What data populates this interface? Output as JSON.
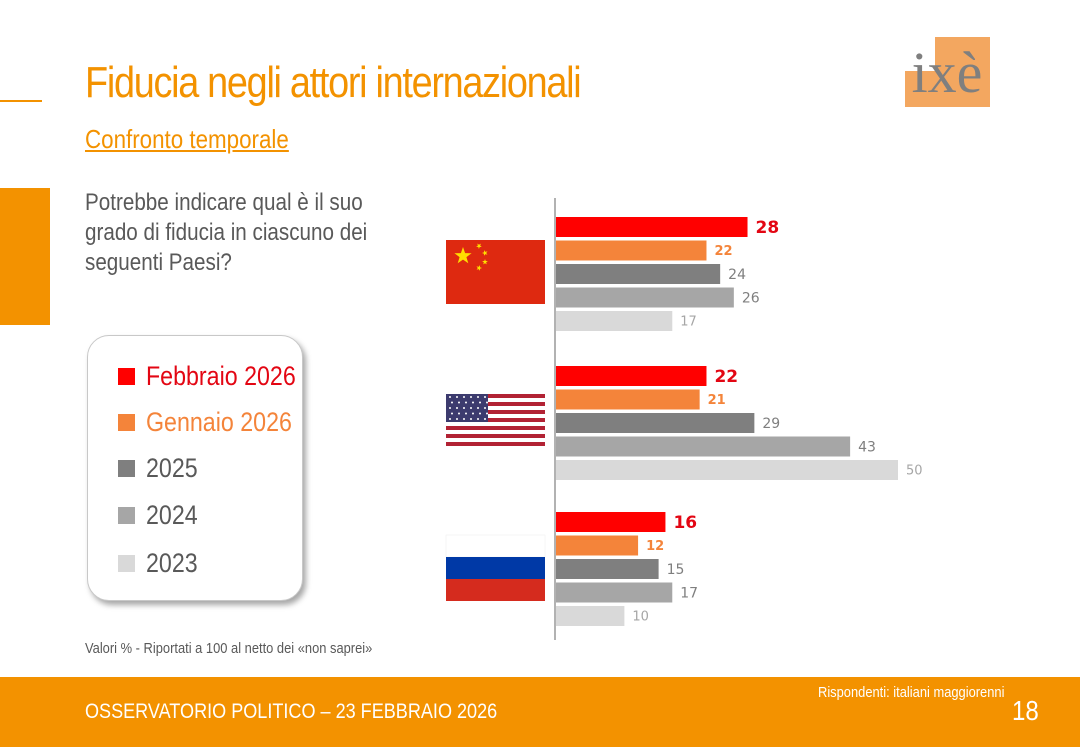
{
  "header": {
    "title": "Fiducia negli attori internazionali",
    "subtitle": "Confronto temporale",
    "logo_text": "ixè"
  },
  "question": "Potrebbe indicare qual è il suo grado di fiducia in ciascuno dei seguenti Paesi?",
  "legend": {
    "items": [
      {
        "label": "Febbraio 2026",
        "color": "#FF0000"
      },
      {
        "label": "Gennaio 2026",
        "color": "#F4843A"
      },
      {
        "label": "2025",
        "color": "#7F7F7F"
      },
      {
        "label": "2024",
        "color": "#A6A6A6"
      },
      {
        "label": "2023",
        "color": "#D9D9D9"
      }
    ]
  },
  "note": "Valori % - Riportati a 100 al netto dei «non saprei»",
  "footer": {
    "left": "OSSERVATORIO POLITICO – 23 FEBBRAIO 2026",
    "respondents": "Rispondenti: italiani maggiorenni",
    "page": "18"
  },
  "colors": {
    "accent": "#F39200",
    "label_feb2026": "#E30613",
    "label_gen2026": "#F4843A",
    "label_other": "#7F7F7F"
  },
  "chart_data": {
    "type": "bar",
    "orientation": "horizontal",
    "categories": [
      "China flag",
      "USA flag",
      "Russia flag"
    ],
    "series": [
      {
        "name": "Febbraio 2026",
        "values": [
          28,
          22,
          16
        ]
      },
      {
        "name": "Gennaio 2026",
        "values": [
          22,
          21,
          12
        ]
      },
      {
        "name": "2025",
        "values": [
          24,
          29,
          15
        ]
      },
      {
        "name": "2024",
        "values": [
          26,
          43,
          17
        ]
      },
      {
        "name": "2023",
        "values": [
          17,
          50,
          10
        ]
      }
    ],
    "xlim": [
      0,
      50
    ],
    "grid": false,
    "data_labels": true
  }
}
